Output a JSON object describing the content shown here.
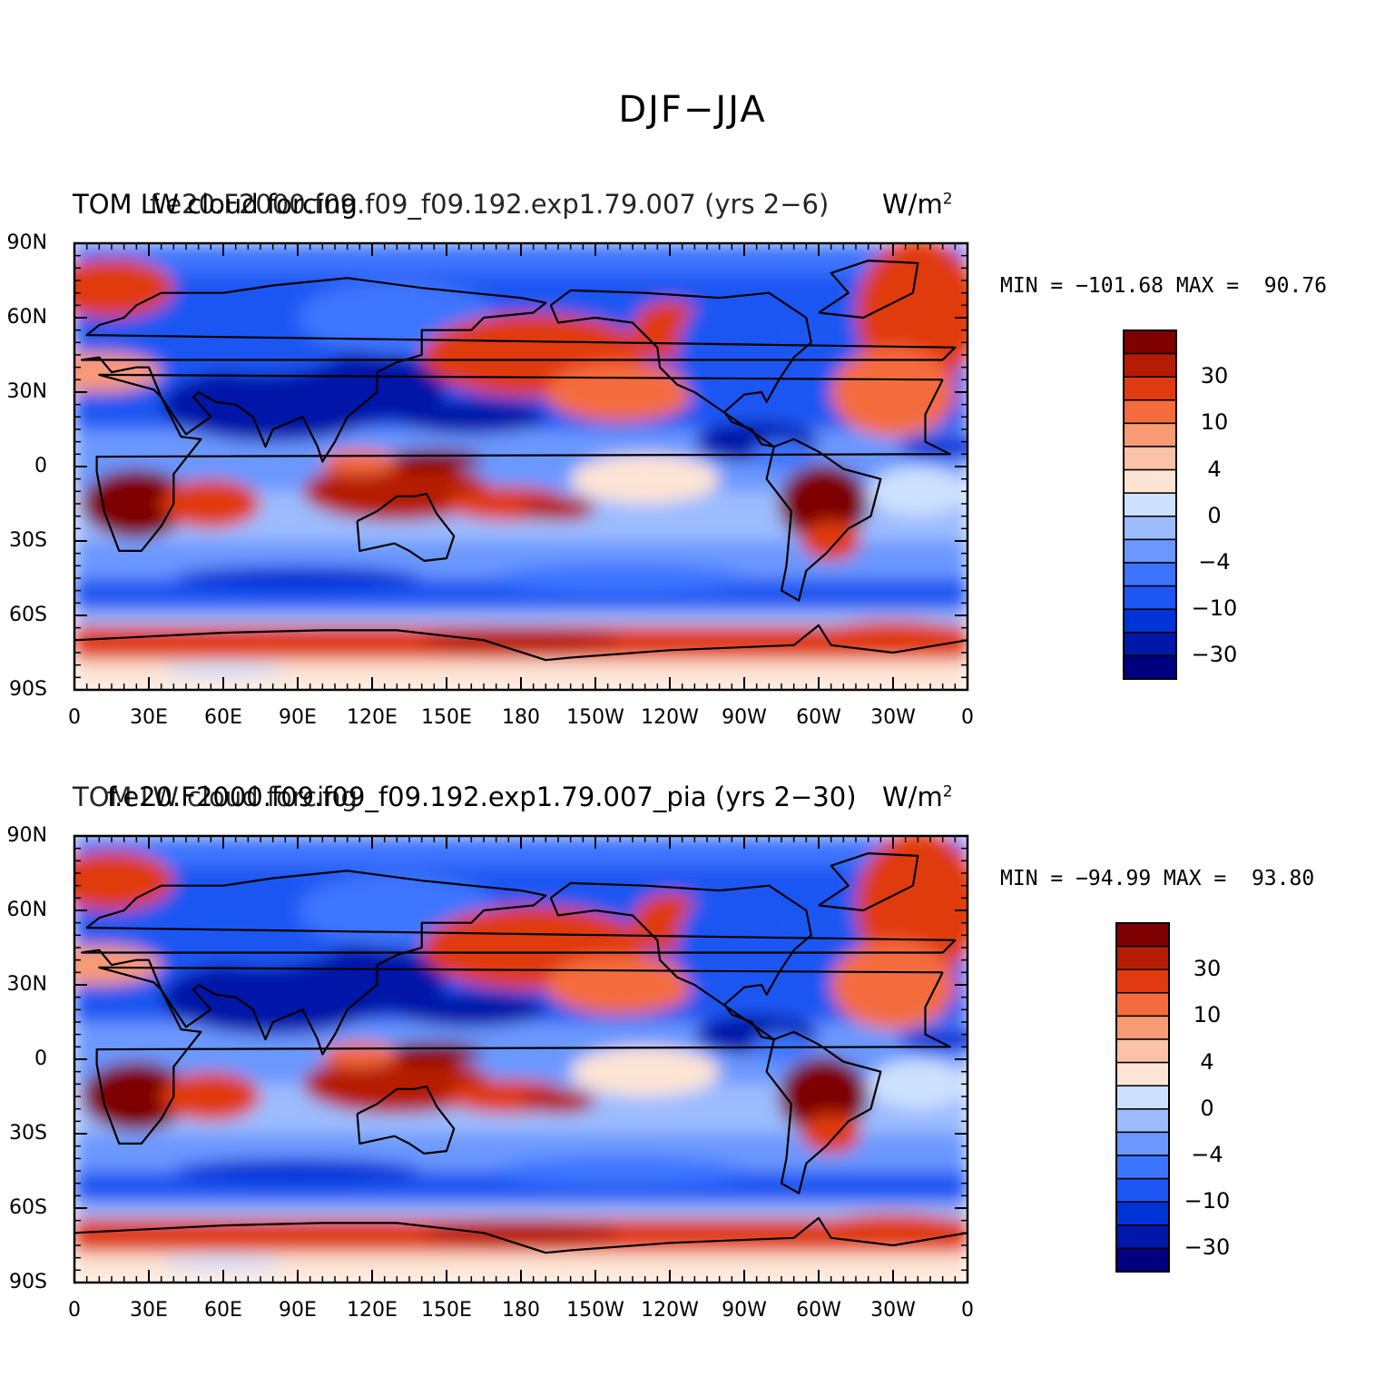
{
  "figure": {
    "main_title": "DJF−JJA"
  },
  "panels": [
    {
      "left_title_a": "TOM LW cloud forcing",
      "left_title_b": "f.e20.F2000.f09.f09_f09.192.exp1.79.007 (yrs 2−6)",
      "units_base": "W/m",
      "units_exp": "2",
      "minmax": "MIN = −101.68 MAX =  90.76",
      "y_ticks": [
        "90N",
        "60N",
        "30N",
        "0",
        "30S",
        "60S",
        "90S"
      ],
      "x_ticks": [
        "0",
        "30E",
        "60E",
        "90E",
        "120E",
        "150E",
        "180",
        "150W",
        "120W",
        "90W",
        "60W",
        "30W",
        "0"
      ],
      "colorbar_labels": [
        "30",
        "10",
        "4",
        "0",
        "−4",
        "−10",
        "−30"
      ]
    },
    {
      "left_title_a": "TOM LW cloud forcing",
      "left_title_b": "f.e20.F2000.f09.f09_f09.192.exp1.79.007_pia (yrs 2−30)",
      "units_base": "W/m",
      "units_exp": "2",
      "minmax": "MIN = −94.99 MAX =  93.80",
      "y_ticks": [
        "90N",
        "60N",
        "30N",
        "0",
        "30S",
        "60S",
        "90S"
      ],
      "x_ticks": [
        "0",
        "30E",
        "60E",
        "90E",
        "120E",
        "150E",
        "180",
        "150W",
        "120W",
        "90W",
        "60W",
        "30W",
        "0"
      ],
      "colorbar_labels": [
        "30",
        "10",
        "4",
        "0",
        "−4",
        "−10",
        "−30"
      ]
    }
  ],
  "chart_data": {
    "type": "heatmap",
    "variable": "TOM LW cloud forcing",
    "units": "W/m2",
    "season_difference": "DJF−JJA",
    "projection": "cylindrical equidistant, centered on 180",
    "lon_range": [
      0,
      360
    ],
    "lat_range": [
      -90,
      90
    ],
    "contour_levels": [
      -40,
      -30,
      -20,
      -10,
      -6,
      -4,
      -2,
      0,
      2,
      4,
      6,
      10,
      20,
      30,
      40
    ],
    "colors": [
      "#00007f",
      "#0018a8",
      "#0033d6",
      "#1d56f2",
      "#3d74ff",
      "#6b98ff",
      "#9cbcff",
      "#cde1ff",
      "#fde4d4",
      "#fcc2a8",
      "#f89a74",
      "#f46c3e",
      "#e03a10",
      "#b51c05",
      "#7e0000"
    ],
    "panels": [
      {
        "case": "f.e20.F2000.f09.f09_f09.192.exp1.79.007 (yrs 2−6)",
        "min": -101.68,
        "max": 90.76
      },
      {
        "case": "f.e20.F2000.f09.f09_f09.192.exp1.79.007_pia (yrs 2−30)",
        "min": -94.99,
        "max": 93.8
      }
    ]
  }
}
